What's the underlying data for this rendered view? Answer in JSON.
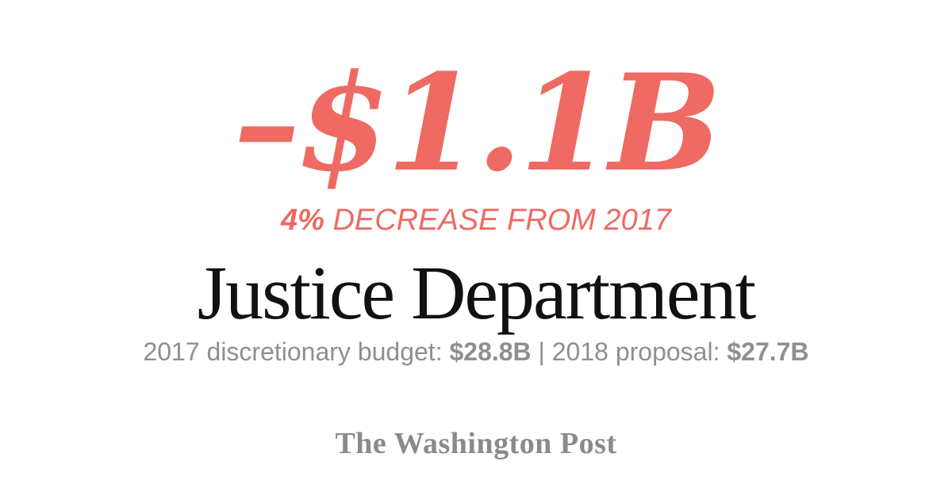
{
  "colors": {
    "accent": "#ef6a62",
    "title_text": "#111111",
    "muted_text": "#8f8f8f",
    "logo": "#8a8a8a",
    "background": "#ffffff"
  },
  "headline": {
    "amount": "–$1.1B"
  },
  "change": {
    "percent": "4%",
    "text": " DECREASE FROM 2017"
  },
  "department": {
    "name": "Justice Department"
  },
  "budget": {
    "label_2017": "2017 discretionary budget: ",
    "value_2017": "$28.8B",
    "separator": " | ",
    "label_2018": "2018 proposal: ",
    "value_2018": "$27.7B"
  },
  "branding": {
    "logo_text": "The Washington Post"
  }
}
